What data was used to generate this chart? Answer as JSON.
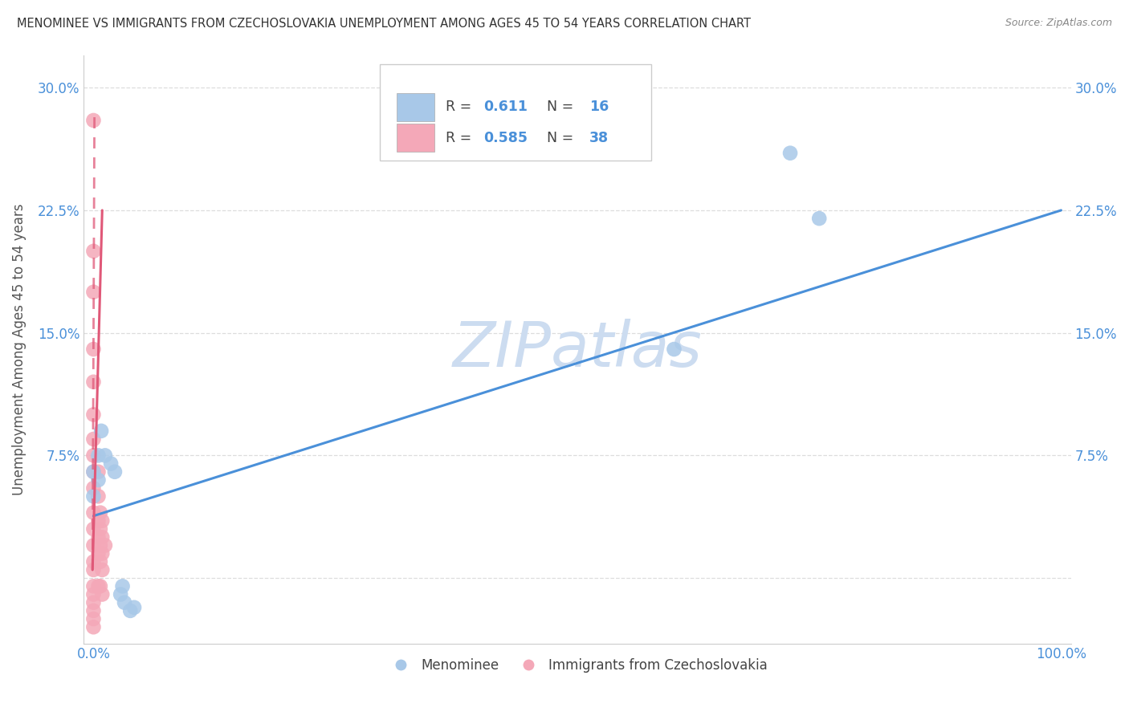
{
  "title": "MENOMINEE VS IMMIGRANTS FROM CZECHOSLOVAKIA UNEMPLOYMENT AMONG AGES 45 TO 54 YEARS CORRELATION CHART",
  "source": "Source: ZipAtlas.com",
  "ylabel": "Unemployment Among Ages 45 to 54 years",
  "xlim": [
    -0.01,
    1.01
  ],
  "ylim": [
    -0.04,
    0.32
  ],
  "xticks": [
    0.0,
    0.25,
    0.5,
    0.75,
    1.0
  ],
  "xticklabels": [
    "0.0%",
    "",
    "",
    "",
    "100.0%"
  ],
  "yticks": [
    0.0,
    0.075,
    0.15,
    0.225,
    0.3
  ],
  "yticklabels": [
    "",
    "7.5%",
    "15.0%",
    "22.5%",
    "30.0%"
  ],
  "blue_color": "#a8c8e8",
  "pink_color": "#f4a8b8",
  "blue_line_color": "#4a90d9",
  "pink_line_color": "#e05878",
  "blue_scatter": {
    "x": [
      0.0,
      0.0,
      0.005,
      0.005,
      0.008,
      0.012,
      0.018,
      0.022,
      0.028,
      0.032,
      0.038,
      0.042,
      0.6,
      0.72,
      0.75,
      0.03
    ],
    "y": [
      0.065,
      0.05,
      0.075,
      0.06,
      0.09,
      0.075,
      0.07,
      0.065,
      -0.01,
      -0.015,
      -0.02,
      -0.018,
      0.14,
      0.26,
      0.22,
      -0.005
    ]
  },
  "pink_scatter": {
    "x": [
      0.0,
      0.0,
      0.0,
      0.0,
      0.0,
      0.0,
      0.0,
      0.0,
      0.0,
      0.0,
      0.0,
      0.0,
      0.0,
      0.0,
      0.0,
      0.0,
      0.0,
      0.0,
      0.0,
      0.0,
      0.0,
      0.005,
      0.005,
      0.005,
      0.005,
      0.005,
      0.005,
      0.007,
      0.007,
      0.007,
      0.007,
      0.007,
      0.009,
      0.009,
      0.009,
      0.009,
      0.009,
      0.012
    ],
    "y": [
      0.28,
      0.2,
      0.175,
      0.14,
      0.12,
      0.1,
      0.085,
      0.075,
      0.065,
      0.055,
      0.04,
      0.03,
      0.02,
      0.01,
      0.005,
      -0.005,
      -0.01,
      -0.015,
      -0.02,
      -0.025,
      -0.03,
      0.065,
      0.05,
      0.035,
      0.025,
      0.015,
      -0.005,
      0.04,
      0.03,
      0.02,
      0.01,
      -0.005,
      0.035,
      0.025,
      0.015,
      0.005,
      -0.01,
      0.02
    ]
  },
  "blue_trendline": {
    "x": [
      0.0,
      1.0
    ],
    "y": [
      0.038,
      0.225
    ]
  },
  "pink_trendline_solid": {
    "x": [
      -0.001,
      0.009
    ],
    "y": [
      0.005,
      0.225
    ]
  },
  "pink_trendline_dashed": {
    "x": [
      -0.001,
      0.001
    ],
    "y": [
      0.005,
      0.285
    ]
  },
  "legend_blue_R": "0.611",
  "legend_blue_N": "16",
  "legend_pink_R": "0.585",
  "legend_pink_N": "38",
  "watermark": "ZIPatlas",
  "watermark_color": "#ccdcf0",
  "background_color": "#ffffff",
  "grid_color": "#dddddd",
  "tick_color": "#4a90d9",
  "label_color": "#555555"
}
